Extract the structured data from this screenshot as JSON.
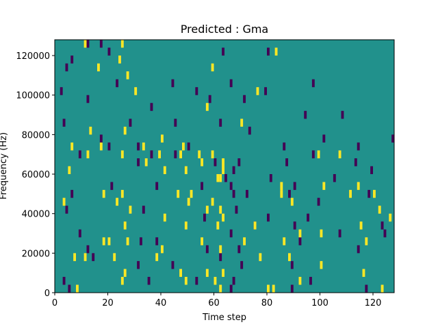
{
  "chart_data": {
    "type": "heatmap",
    "title": "Predicted : Gma",
    "xlabel": "Time step",
    "ylabel": "Frequency (Hz)",
    "xlim": [
      0,
      128
    ],
    "ylim": [
      0,
      128000
    ],
    "xticks": [
      0,
      20,
      40,
      60,
      80,
      100,
      120
    ],
    "xtick_labels": [
      "0",
      "20",
      "40",
      "60",
      "80",
      "100",
      "120"
    ],
    "yticks": [
      0,
      20000,
      40000,
      60000,
      80000,
      100000,
      120000
    ],
    "ytick_labels": [
      "0",
      "20000",
      "40000",
      "60000",
      "80000",
      "100000",
      "120000"
    ],
    "grid": false,
    "legend": "none",
    "colors": {
      "background": "#21918c",
      "low": "#440154",
      "high": "#fde725"
    },
    "cell": {
      "time_width": 1,
      "freq_height": 4000
    },
    "high_cells": [
      [
        11,
        124000
      ],
      [
        25,
        124000
      ],
      [
        83,
        120000
      ],
      [
        24,
        116000
      ],
      [
        16,
        112000
      ],
      [
        59,
        112000
      ],
      [
        27,
        108000
      ],
      [
        30,
        100000
      ],
      [
        76,
        100000
      ],
      [
        57,
        92000
      ],
      [
        70,
        84000
      ],
      [
        13,
        80000
      ],
      [
        26,
        80000
      ],
      [
        40,
        76000
      ],
      [
        6,
        72000
      ],
      [
        17,
        72000
      ],
      [
        48,
        72000
      ],
      [
        33,
        72000
      ],
      [
        12,
        68000
      ],
      [
        25,
        68000
      ],
      [
        39,
        68000
      ],
      [
        47,
        68000
      ],
      [
        54,
        68000
      ],
      [
        59,
        68000
      ],
      [
        99,
        68000
      ],
      [
        107,
        68000
      ],
      [
        55,
        64000
      ],
      [
        63,
        64000
      ],
      [
        34,
        64000
      ],
      [
        63,
        60000
      ],
      [
        62,
        56000
      ],
      [
        5,
        60000
      ],
      [
        41,
        60000
      ],
      [
        49,
        60000
      ],
      [
        61,
        56000
      ],
      [
        18,
        48000
      ],
      [
        25,
        48000
      ],
      [
        46,
        48000
      ],
      [
        51,
        48000
      ],
      [
        85,
        52000
      ],
      [
        101,
        52000
      ],
      [
        114,
        52000
      ],
      [
        3,
        44000
      ],
      [
        23,
        44000
      ],
      [
        50,
        44000
      ],
      [
        59,
        44000
      ],
      [
        85,
        48000
      ],
      [
        111,
        48000
      ],
      [
        120,
        48000
      ],
      [
        89,
        44000
      ],
      [
        28,
        40000
      ],
      [
        57,
        40000
      ],
      [
        122,
        40000
      ],
      [
        62,
        40000
      ],
      [
        63,
        36000
      ],
      [
        41,
        36000
      ],
      [
        26,
        32000
      ],
      [
        49,
        32000
      ],
      [
        61,
        32000
      ],
      [
        75,
        32000
      ],
      [
        100,
        28000
      ],
      [
        115,
        32000
      ],
      [
        126,
        36000
      ],
      [
        20,
        24000
      ],
      [
        27,
        24000
      ],
      [
        55,
        24000
      ],
      [
        62,
        20000
      ],
      [
        71,
        24000
      ],
      [
        92,
        28000
      ],
      [
        18,
        24000
      ],
      [
        40,
        20000
      ],
      [
        86,
        24000
      ],
      [
        117,
        24000
      ],
      [
        7,
        16000
      ],
      [
        11,
        16000
      ],
      [
        22,
        16000
      ],
      [
        38,
        16000
      ],
      [
        77,
        16000
      ],
      [
        88,
        16000
      ],
      [
        100,
        12000
      ],
      [
        26,
        8000
      ],
      [
        47,
        8000
      ],
      [
        63,
        8000
      ],
      [
        116,
        8000
      ],
      [
        49,
        4000
      ],
      [
        25,
        4000
      ],
      [
        60,
        4000
      ],
      [
        57,
        8000
      ],
      [
        92,
        4000
      ],
      [
        8,
        0
      ],
      [
        62,
        0
      ],
      [
        80,
        0
      ],
      [
        82,
        0
      ],
      [
        123,
        0
      ]
    ],
    "low_cells": [
      [
        12,
        124000
      ],
      [
        17,
        124000
      ],
      [
        6,
        116000
      ],
      [
        20,
        120000
      ],
      [
        63,
        120000
      ],
      [
        80,
        120000
      ],
      [
        4,
        112000
      ],
      [
        23,
        104000
      ],
      [
        44,
        104000
      ],
      [
        53,
        100000
      ],
      [
        66,
        104000
      ],
      [
        79,
        100000
      ],
      [
        97,
        104000
      ],
      [
        2,
        100000
      ],
      [
        12,
        96000
      ],
      [
        36,
        92000
      ],
      [
        58,
        96000
      ],
      [
        71,
        96000
      ],
      [
        94,
        88000
      ],
      [
        108,
        88000
      ],
      [
        3,
        84000
      ],
      [
        28,
        84000
      ],
      [
        45,
        84000
      ],
      [
        62,
        84000
      ],
      [
        73,
        80000
      ],
      [
        17,
        76000
      ],
      [
        31,
        72000
      ],
      [
        50,
        72000
      ],
      [
        86,
        72000
      ],
      [
        101,
        76000
      ],
      [
        114,
        72000
      ],
      [
        127,
        76000
      ],
      [
        9,
        68000
      ],
      [
        20,
        72000
      ],
      [
        36,
        68000
      ],
      [
        45,
        68000
      ],
      [
        60,
        64000
      ],
      [
        69,
        64000
      ],
      [
        87,
        64000
      ],
      [
        97,
        68000
      ],
      [
        113,
        64000
      ],
      [
        31,
        64000
      ],
      [
        67,
        60000
      ],
      [
        64,
        56000
      ],
      [
        66,
        52000
      ],
      [
        81,
        56000
      ],
      [
        90,
        52000
      ],
      [
        105,
        56000
      ],
      [
        119,
        60000
      ],
      [
        6,
        48000
      ],
      [
        21,
        52000
      ],
      [
        38,
        52000
      ],
      [
        55,
        52000
      ],
      [
        67,
        48000
      ],
      [
        72,
        48000
      ],
      [
        88,
        48000
      ],
      [
        99,
        44000
      ],
      [
        118,
        48000
      ],
      [
        4,
        40000
      ],
      [
        33,
        40000
      ],
      [
        56,
        36000
      ],
      [
        68,
        40000
      ],
      [
        80,
        36000
      ],
      [
        95,
        36000
      ],
      [
        123,
        32000
      ],
      [
        9,
        28000
      ],
      [
        32,
        24000
      ],
      [
        66,
        28000
      ],
      [
        75,
        32000
      ],
      [
        90,
        32000
      ],
      [
        107,
        28000
      ],
      [
        124,
        28000
      ],
      [
        12,
        20000
      ],
      [
        38,
        24000
      ],
      [
        57,
        20000
      ],
      [
        69,
        20000
      ],
      [
        92,
        24000
      ],
      [
        114,
        20000
      ],
      [
        14,
        16000
      ],
      [
        31,
        12000
      ],
      [
        44,
        12000
      ],
      [
        62,
        16000
      ],
      [
        70,
        12000
      ],
      [
        89,
        12000
      ],
      [
        3,
        4000
      ],
      [
        35,
        4000
      ],
      [
        53,
        4000
      ],
      [
        67,
        4000
      ],
      [
        96,
        4000
      ],
      [
        5,
        0
      ],
      [
        66,
        0
      ],
      [
        89,
        0
      ],
      [
        117,
        0
      ]
    ]
  }
}
